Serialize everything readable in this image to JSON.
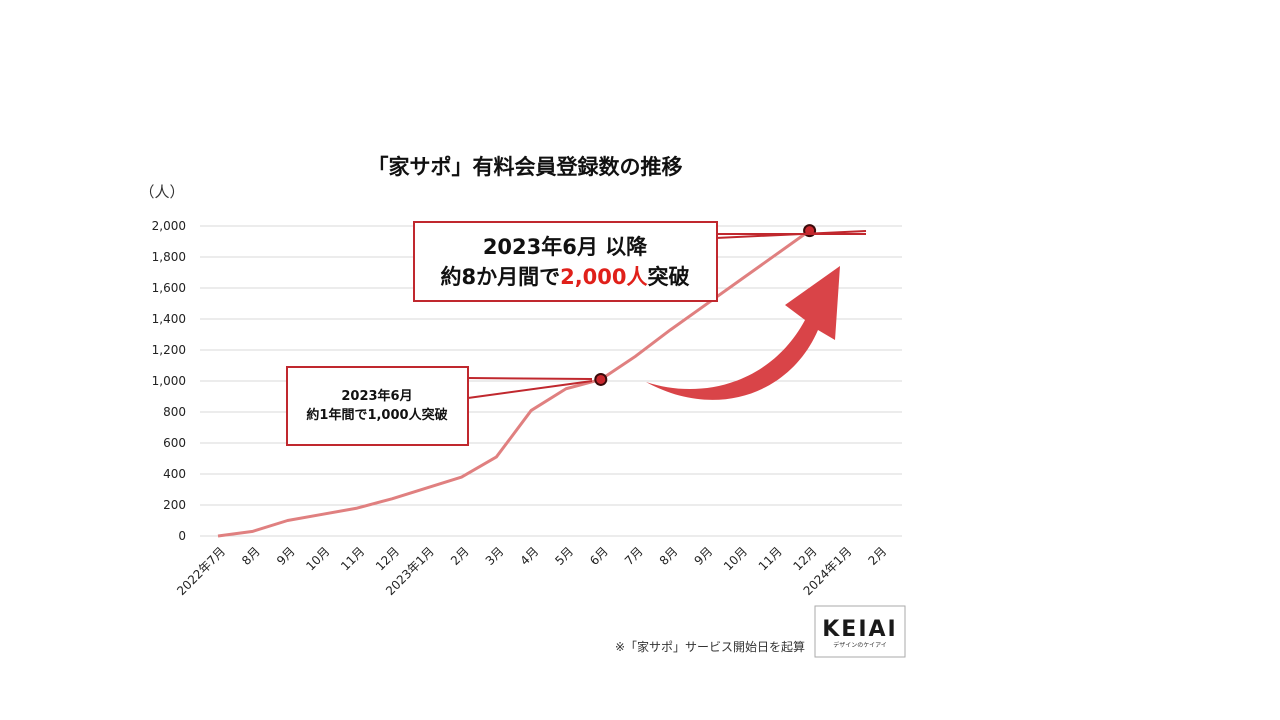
{
  "chart_data": {
    "type": "line",
    "title": "「家サポ」有料会員登録数の推移",
    "ylabel": "（人）",
    "xlabel": "",
    "ylim": [
      0,
      2000
    ],
    "yticks": [
      0,
      200,
      400,
      600,
      800,
      1000,
      1200,
      1400,
      1600,
      1800,
      2000
    ],
    "ytick_labels": [
      "0",
      "200",
      "400",
      "600",
      "800",
      "1,000",
      "1,200",
      "1,400",
      "1,600",
      "1,800",
      "2,000"
    ],
    "categories": [
      "2022年7月",
      "8月",
      "9月",
      "10月",
      "11月",
      "12月",
      "2023年1月",
      "2月",
      "3月",
      "4月",
      "5月",
      "6月",
      "7月",
      "8月",
      "9月",
      "10月",
      "11月",
      "12月",
      "2024年1月",
      "2月"
    ],
    "series": [
      {
        "name": "有料会員登録数",
        "values": [
          0,
          30,
          100,
          140,
          180,
          240,
          310,
          380,
          510,
          810,
          950,
          1010,
          1160,
          1330,
          1490,
          1650,
          1810,
          1970,
          null,
          null
        ],
        "color": "#e08080"
      }
    ],
    "highlight_points": [
      {
        "index": 11,
        "value": 1010
      },
      {
        "index": 17,
        "value": 1970
      }
    ],
    "grid": true
  },
  "callouts": {
    "big": {
      "line1": "2023年6月 以降",
      "line2_prefix": "約8か月間で",
      "line2_highlight": "2,000人",
      "line2_suffix": "突破"
    },
    "small": {
      "line1": "2023年6月",
      "line2": "約1年間で1,000人突破"
    }
  },
  "footnote": "※「家サポ」サービス開始日を起算",
  "logo": {
    "main": "KEIAI",
    "sub": "デザインのケイアイ"
  },
  "colors": {
    "accent": "#c8282e",
    "line": "#e08080",
    "callout_border": "#c0282e",
    "highlight_text": "#e0201a",
    "arrow": "#d94448"
  }
}
